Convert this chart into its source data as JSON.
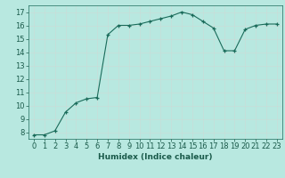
{
  "x": [
    0,
    1,
    2,
    3,
    4,
    5,
    6,
    7,
    8,
    9,
    10,
    11,
    12,
    13,
    14,
    15,
    16,
    17,
    18,
    19,
    20,
    21,
    22,
    23
  ],
  "y": [
    7.8,
    7.8,
    8.1,
    9.5,
    10.2,
    10.5,
    10.6,
    15.3,
    16.0,
    16.0,
    16.1,
    16.3,
    16.5,
    16.7,
    17.0,
    16.8,
    16.3,
    15.8,
    14.1,
    14.1,
    15.7,
    16.0,
    16.1,
    16.1
  ],
  "bg_color": "#b8e8e0",
  "line_color": "#1a6b5a",
  "marker_color": "#1a6b5a",
  "grid_major_color": "#c8ddd8",
  "grid_minor_color": "#d8eae6",
  "xlabel": "Humidex (Indice chaleur)",
  "xlim": [
    -0.5,
    23.5
  ],
  "ylim": [
    7.5,
    17.5
  ],
  "yticks": [
    8,
    9,
    10,
    11,
    12,
    13,
    14,
    15,
    16,
    17
  ],
  "xticks": [
    0,
    1,
    2,
    3,
    4,
    5,
    6,
    7,
    8,
    9,
    10,
    11,
    12,
    13,
    14,
    15,
    16,
    17,
    18,
    19,
    20,
    21,
    22,
    23
  ],
  "xlabel_fontsize": 6.5,
  "tick_fontsize": 6.0,
  "label_color": "#1a5a4a"
}
